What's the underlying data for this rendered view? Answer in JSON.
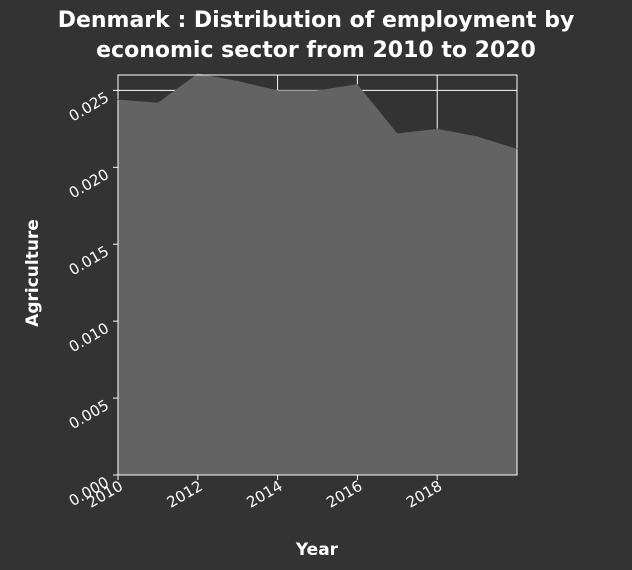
{
  "chart_data": {
    "type": "area",
    "title_line1": "Denmark : Distribution of employment by",
    "title_line2": "economic sector from 2010 to 2020",
    "xlabel": "Year",
    "ylabel": "Agriculture",
    "x": [
      2010,
      2011,
      2012,
      2013,
      2014,
      2015,
      2016,
      2017,
      2018,
      2019,
      2020
    ],
    "values": [
      0.0244,
      0.0242,
      0.0261,
      0.0256,
      0.025,
      0.025,
      0.0254,
      0.0222,
      0.0225,
      0.022,
      0.0212
    ],
    "xlim": [
      2010,
      2020
    ],
    "ylim": [
      0,
      0.026
    ],
    "x_ticks": [
      "2010",
      "2012",
      "2014",
      "2016",
      "2018"
    ],
    "y_ticks": [
      "0.000",
      "0.005",
      "0.010",
      "0.015",
      "0.020",
      "0.025"
    ],
    "grid": true,
    "colors": {
      "background": "#333333",
      "area": "#636363",
      "grid": "#ffffff",
      "text": "#ffffff"
    }
  }
}
